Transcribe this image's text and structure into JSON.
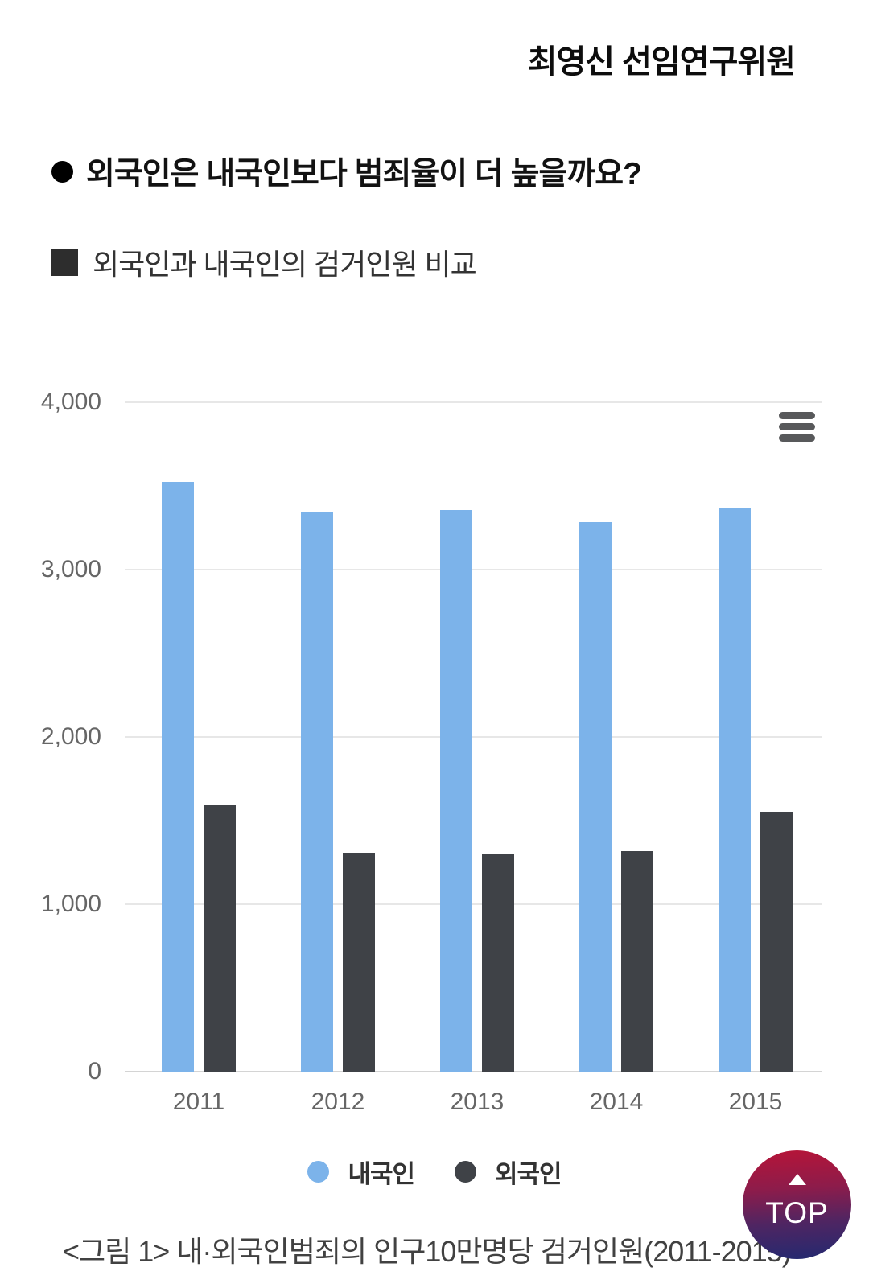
{
  "byline": "최영신 선임연구위원",
  "question_heading": "외국인은 내국인보다 범죄율이 더 높을까요?",
  "comparison_subheading": "외국인과 내국인의 검거인원 비교",
  "chart_data": {
    "type": "bar",
    "title": "",
    "categories": [
      "2011",
      "2012",
      "2013",
      "2014",
      "2015"
    ],
    "series": [
      {
        "key": "domestic",
        "name": "내국인",
        "color": "#7cb3ea",
        "values": [
          3524,
          3348,
          3354,
          3282,
          3369
        ]
      },
      {
        "key": "foreign",
        "name": "외국인",
        "color": "#3f4247",
        "values": [
          1591,
          1307,
          1305,
          1318,
          1552
        ]
      }
    ],
    "ylim": [
      0,
      4000
    ],
    "ytick_labels": [
      "0",
      "1,000",
      "2,000",
      "3,000",
      "4,000"
    ],
    "ytick_values": [
      0,
      1000,
      2000,
      3000,
      4000
    ],
    "grid": "horizontal",
    "legend_position": "bottom-center",
    "menu_icon": "hamburger-menu-icon"
  },
  "caption": "<그림 1> 내·외국인범죄의 인구10만명당 검거인원(2011-2015)",
  "top_button": {
    "label": "TOP",
    "icon": "up-triangle-icon"
  },
  "colors": {
    "grid_line": "#e7e7e7",
    "axis_line": "#d4d4d4",
    "axis_label": "#666666",
    "top_gradient_top": "#b2153a",
    "top_gradient_bottom": "#27296f"
  }
}
